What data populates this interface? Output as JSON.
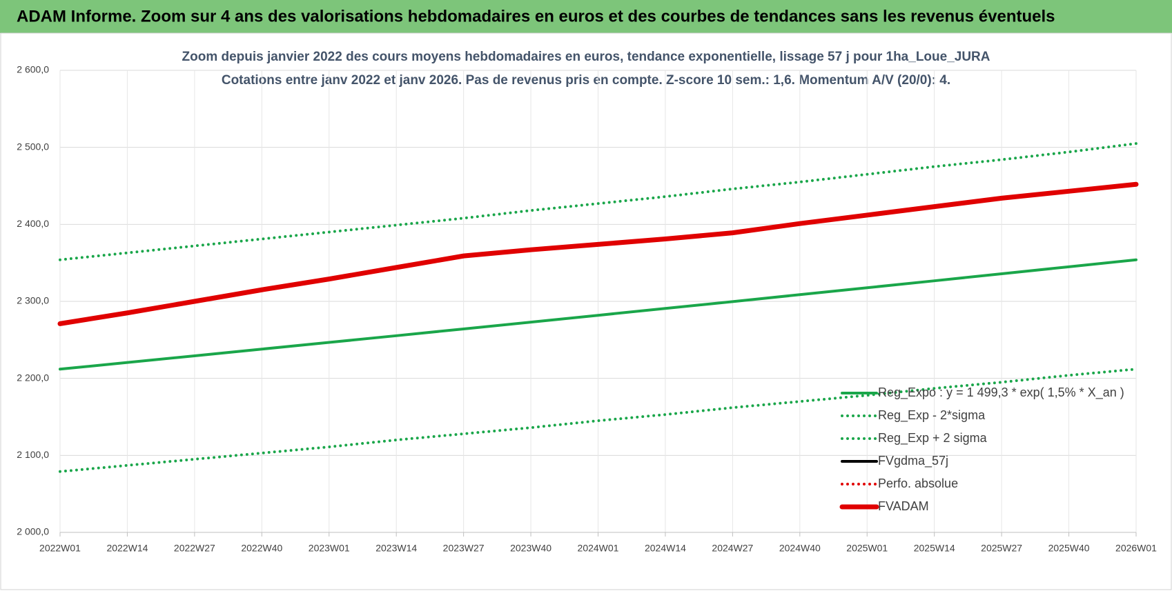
{
  "header": {
    "title": "ADAM Informe. Zoom sur 4 ans des valorisations hebdomadaires en euros et des courbes de tendances sans les revenus éventuels"
  },
  "chart_data": {
    "type": "line",
    "title": "Zoom depuis janvier 2022 des cours moyens hebdomadaires en euros, tendance exponentielle, lissage 57 j pour 1ha_Loue_JURA",
    "subtitle": "Cotations entre janv 2022 et janv 2026. Pas de revenus pris en compte. Z-score 10 sem.: 1,6. Momentum A/V (20/0): 4.",
    "categories": [
      "2022W01",
      "2022W14",
      "2022W27",
      "2022W40",
      "2023W01",
      "2023W14",
      "2023W27",
      "2023W40",
      "2024W01",
      "2024W14",
      "2024W27",
      "2024W40",
      "2025W01",
      "2025W14",
      "2025W27",
      "2025W40",
      "2026W01"
    ],
    "ylim": [
      2000,
      2600
    ],
    "yticks": [
      {
        "value": 2000,
        "label": "2 000,0"
      },
      {
        "value": 2100,
        "label": "2 100,0"
      },
      {
        "value": 2200,
        "label": "2 200,0"
      },
      {
        "value": 2300,
        "label": "2 300,0"
      },
      {
        "value": 2400,
        "label": "2 400,0"
      },
      {
        "value": 2500,
        "label": "2 500,0"
      },
      {
        "value": 2600,
        "label": "2 600,0"
      }
    ],
    "grid": true,
    "legend": "right",
    "series": [
      {
        "name": "Reg_Expo : y = 1 499,3 * exp( 1,5% *  X_an )",
        "color": "#1aa64a",
        "style": "solid",
        "values": [
          2212,
          2220.6,
          2229.3,
          2238,
          2246.7,
          2255.4,
          2264.2,
          2273,
          2281.9,
          2290.8,
          2299.7,
          2308.7,
          2317.7,
          2326.7,
          2335.8,
          2344.9,
          2354
        ]
      },
      {
        "name": "Reg_Exp - 2*sigma",
        "color": "#1aa64a",
        "style": "dotted",
        "values": [
          2079,
          2087,
          2095,
          2103,
          2111,
          2120,
          2128,
          2136,
          2145,
          2153,
          2162,
          2170,
          2178,
          2187,
          2195,
          2204,
          2212
        ]
      },
      {
        "name": "Reg_Exp + 2 sigma",
        "color": "#1aa64a",
        "style": "dotted",
        "values": [
          2354,
          2363,
          2372,
          2381,
          2390,
          2399,
          2408,
          2418,
          2427,
          2436,
          2446,
          2455,
          2465,
          2475,
          2484,
          2494,
          2505
        ]
      },
      {
        "name": "FVgdma_57j",
        "color": "#000000",
        "style": "solid",
        "values": [
          2271,
          2285,
          2300,
          2315,
          2329,
          2344,
          2359,
          2366,
          2374,
          2381,
          2389,
          2401,
          2412,
          2423,
          2434,
          2443,
          2452
        ]
      },
      {
        "name": "Perfo. absolue",
        "color": "#e00000",
        "style": "dotted",
        "values": [
          2271,
          2285,
          2300,
          2315,
          2329,
          2344,
          2359,
          2367,
          2374,
          2381,
          2389,
          2401,
          2412,
          2423,
          2434,
          2443,
          2452
        ]
      },
      {
        "name": "FVADAM",
        "color": "#e00000",
        "style": "thick",
        "values": [
          2271,
          2285,
          2300,
          2315,
          2329,
          2344,
          2359,
          2367,
          2374,
          2381,
          2389,
          2401,
          2412,
          2423,
          2434,
          2443,
          2452
        ]
      }
    ]
  }
}
